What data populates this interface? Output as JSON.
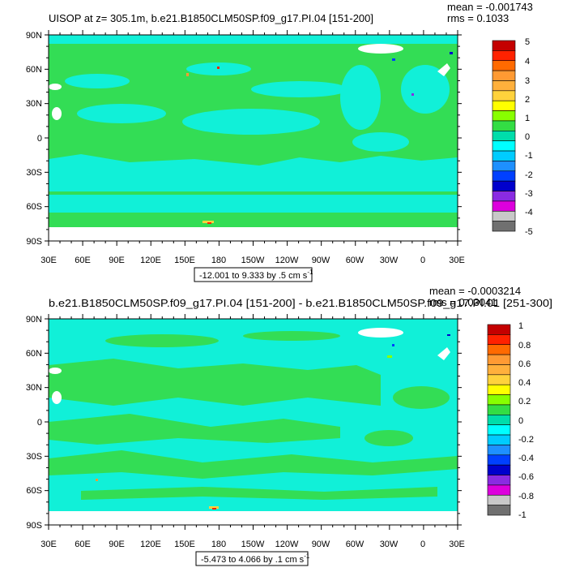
{
  "chart_data": [
    {
      "type": "heatmap",
      "title": "UISOP at z= 305.1m, b.e21.B1850CLM50SP.f09_g17.PI.04 [151-200]",
      "mean_label": "mean = -0.001743",
      "rms_label": "rms = 0.1033",
      "range_label": "-12.001 to 9.333 by .5 cm s",
      "range_exponent": "-1",
      "x_ticks": [
        "30E",
        "60E",
        "90E",
        "120E",
        "150E",
        "180",
        "150W",
        "120W",
        "90W",
        "60W",
        "30W",
        "0",
        "30E"
      ],
      "y_ticks": [
        "90N",
        "60N",
        "30N",
        "0",
        "30S",
        "60S",
        "90S"
      ],
      "colorbar_labels": [
        "5",
        "4",
        "3",
        "2",
        "1",
        "0",
        "-1",
        "-2",
        "-3",
        "-4",
        "-5"
      ],
      "colorbar_colors": [
        "#c40000",
        "#ff2200",
        "#ff6a00",
        "#ff9a33",
        "#ffb03c",
        "#ffd23c",
        "#ffff00",
        "#88ff00",
        "#33dd44",
        "#00ddaa",
        "#00ffff",
        "#00ccff",
        "#1e90ff",
        "#0040ff",
        "#0000cc",
        "#8a2be2",
        "#dd00dd",
        "#c8c8c8",
        "#707070"
      ]
    },
    {
      "type": "heatmap",
      "title": "b.e21.B1850CLM50SP.f09_g17.PI.04 [151-200] - b.e21.B1850CLM50SP.f09_g17.PI.01 [251-300]",
      "mean_label": "mean = -0.0003214",
      "rms_label": "rms = 0.03041",
      "range_label": "-5.473 to 4.066 by .1 cm s",
      "range_exponent": "-1",
      "x_ticks": [
        "30E",
        "60E",
        "90E",
        "120E",
        "150E",
        "180",
        "150W",
        "120W",
        "90W",
        "60W",
        "30W",
        "0",
        "30E"
      ],
      "y_ticks": [
        "90N",
        "60N",
        "30N",
        "0",
        "30S",
        "60S",
        "90S"
      ],
      "colorbar_labels": [
        "1",
        "0.8",
        "0.6",
        "0.4",
        "0.2",
        "0",
        "-0.2",
        "-0.4",
        "-0.6",
        "-0.8",
        "-1"
      ],
      "colorbar_colors": [
        "#c40000",
        "#ff2200",
        "#ff6a00",
        "#ff9a33",
        "#ffb03c",
        "#ffd23c",
        "#ffff00",
        "#88ff00",
        "#33dd44",
        "#00ddaa",
        "#00ffff",
        "#00ccff",
        "#1e90ff",
        "#0040ff",
        "#0000cc",
        "#8a2be2",
        "#dd00dd",
        "#c8c8c8",
        "#707070"
      ]
    }
  ],
  "colors": {
    "ocean_green": "#33dd55",
    "ocean_cyan": "#11f0d8",
    "land": "#ffffff"
  }
}
